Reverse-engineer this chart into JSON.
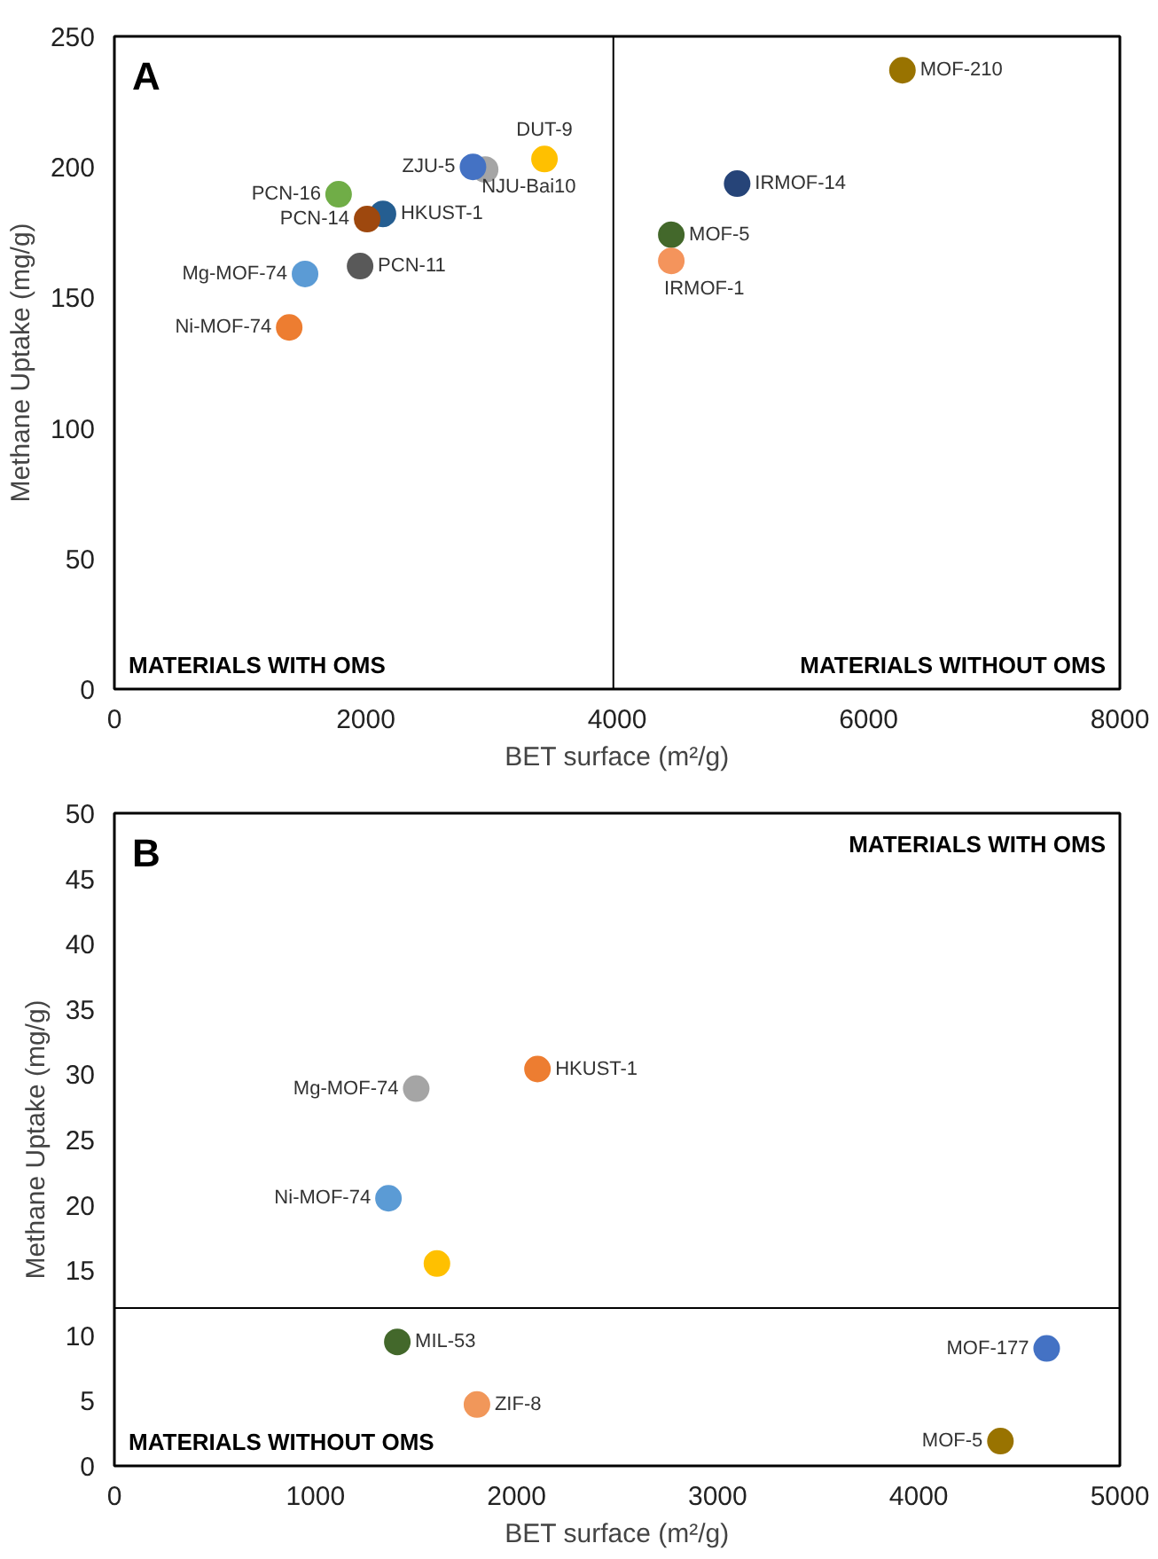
{
  "chart_data": [
    {
      "type": "scatter",
      "xlabel": "BET surface (m²/g)",
      "ylabel": "Methane Uptake (mg/g)",
      "x": [
        1391,
        1517,
        1955,
        2137,
        2011,
        1784,
        2950,
        2853,
        3422,
        6270,
        4955,
        4431,
        4431
      ],
      "values": [
        138.5,
        159,
        162,
        182,
        180,
        189.5,
        199,
        200,
        203,
        237,
        193.6,
        174,
        164
      ],
      "colors": [
        "#ed7d31",
        "#5b9bd5",
        "#595959",
        "#255e91",
        "#9e480e",
        "#70ad47",
        "#a5a5a5",
        "#4472c4",
        "#ffc000",
        "#997300",
        "#264478",
        "#43682b",
        "#f4945c"
      ],
      "marker": "circle",
      "grid": false,
      "xlim": [
        0,
        8000
      ],
      "xticks": [
        0,
        2000,
        4000,
        6000,
        8000
      ],
      "ylim": [
        0,
        250
      ],
      "yticks": [
        0,
        50,
        100,
        150,
        200,
        250
      ],
      "ref_lines": [
        {
          "axis": "x",
          "value": 3970,
          "color": "#000000"
        }
      ],
      "annotations": [
        {
          "text": "Ni-MOF-74",
          "x": 1391,
          "y": 138.5
        },
        {
          "text": "Mg-MOF-74",
          "x": 1517,
          "y": 159
        },
        {
          "text": "PCN-11",
          "x": 1955,
          "y": 162
        },
        {
          "text": "HKUST-1",
          "x": 2137,
          "y": 182
        },
        {
          "text": "PCN-14",
          "x": 2011,
          "y": 180
        },
        {
          "text": "PCN-16",
          "x": 1784,
          "y": 189.5
        },
        {
          "text": "NJU-Bai10",
          "x": 2950,
          "y": 199
        },
        {
          "text": "ZJU-5",
          "x": 2853,
          "y": 200
        },
        {
          "text": "DUT-9",
          "x": 3422,
          "y": 203
        },
        {
          "text": "MOF-210",
          "x": 6270,
          "y": 237
        },
        {
          "text": "IRMOF-14",
          "x": 4955,
          "y": 193.6
        },
        {
          "text": "MOF-5",
          "x": 4431,
          "y": 174
        },
        {
          "text": "IRMOF-1",
          "x": 4431,
          "y": 164
        },
        "A",
        "MATERIALS WITH OMS",
        "MATERIALS WITHOUT OMS"
      ]
    },
    {
      "type": "scatter",
      "xlabel": "BET surface (m²/g)",
      "ylabel": "Methane Uptake (mg/g)",
      "x": [
        2104,
        1501,
        1363,
        1604,
        1407,
        1803,
        4636,
        4406
      ],
      "values": [
        30.4,
        28.9,
        20.5,
        15.5,
        9.5,
        4.7,
        9.0,
        1.9
      ],
      "colors": [
        "#ed7d31",
        "#a5a5a5",
        "#5b9bd5",
        "#ffc000",
        "#43682b",
        "#f1975a",
        "#4472c4",
        "#997300"
      ],
      "marker": "circle",
      "grid": false,
      "xlim": [
        0,
        5000
      ],
      "xticks": [
        0,
        1000,
        2000,
        3000,
        4000,
        5000
      ],
      "ylim": [
        0,
        50
      ],
      "yticks": [
        0,
        5,
        10,
        15,
        20,
        25,
        30,
        35,
        40,
        45,
        50
      ],
      "ref_lines": [
        {
          "axis": "y",
          "value": 12.1,
          "color": "#000000"
        }
      ],
      "annotations": [
        {
          "text": "HKUST-1",
          "x": 2104,
          "y": 30.4
        },
        {
          "text": "Mg-MOF-74",
          "x": 1501,
          "y": 28.9
        },
        {
          "text": "Ni-MOF-74",
          "x": 1363,
          "y": 20.5
        },
        {
          "text": "MIL-53",
          "x": 1407,
          "y": 9.5
        },
        {
          "text": "ZIF-8",
          "x": 1803,
          "y": 4.7
        },
        {
          "text": "MOF-177",
          "x": 4636,
          "y": 9.0
        },
        {
          "text": "MOF-5",
          "x": 4406,
          "y": 1.9
        },
        "B",
        "MATERIALS WITH OMS",
        "MATERIALS WITHOUT OMS"
      ]
    }
  ]
}
